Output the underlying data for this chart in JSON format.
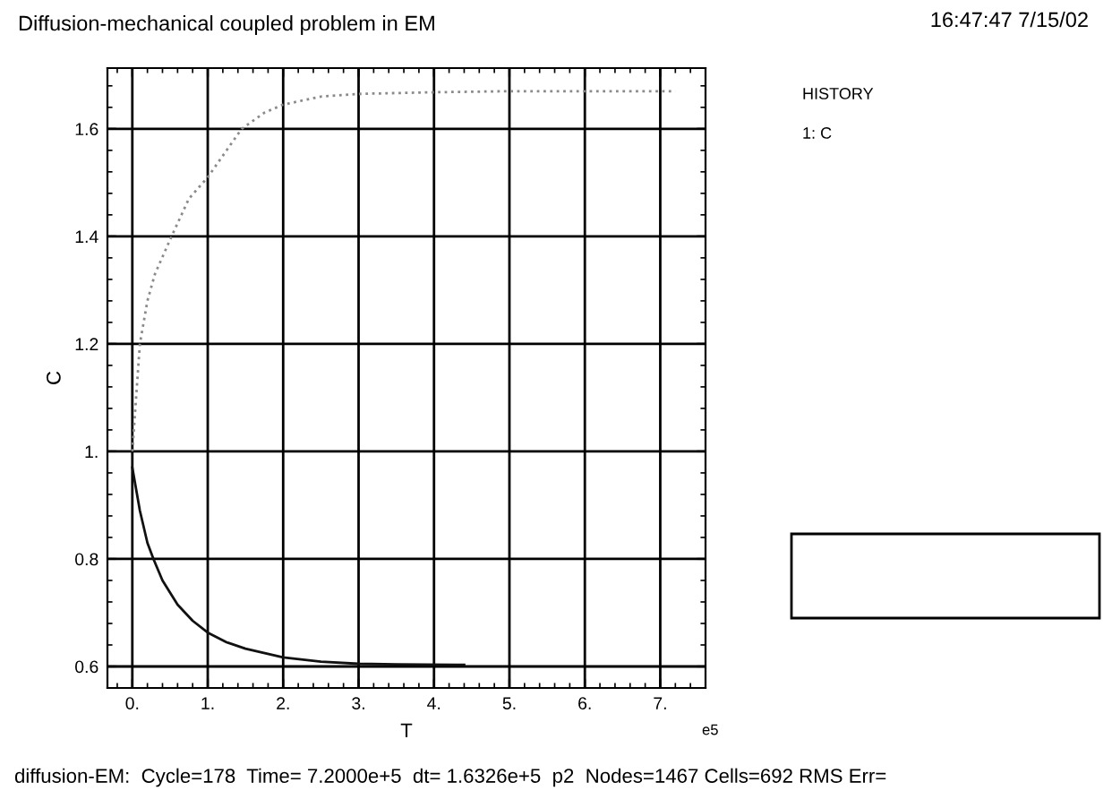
{
  "chart_data": {
    "type": "line",
    "title": "Diffusion-mechanical coupled problem in EM",
    "xlabel": "T",
    "ylabel": "C",
    "annotations": [
      "16:47:47 7/15/02",
      "HISTORY",
      "1: C",
      "e5",
      "diffusion-EM:  Cycle=178  Time= 7.2000e+5  dt= 1.6326e+5  p2  Nodes=1467 Cells=692 RMS Err="
    ],
    "series": [
      {
        "color": "#8a8a8a",
        "line_style": "dotted",
        "x": [
          0,
          0.05,
          0.1,
          0.2,
          0.3,
          0.52,
          0.75,
          1.0,
          1.25,
          1.45,
          1.75,
          2.0,
          2.5,
          3.0,
          4.0,
          5.0,
          6.0,
          7.2
        ],
        "values": [
          1.0,
          1.1,
          1.2,
          1.28,
          1.33,
          1.4,
          1.47,
          1.51,
          1.56,
          1.6,
          1.63,
          1.645,
          1.66,
          1.665,
          1.668,
          1.67,
          1.67,
          1.67
        ]
      },
      {
        "color": "#111111",
        "line_style": "solid",
        "x": [
          0,
          0.05,
          0.1,
          0.2,
          0.28,
          0.4,
          0.6,
          0.8,
          1.0,
          1.25,
          1.5,
          2.0,
          2.5,
          3.0,
          3.5,
          4.4
        ],
        "values": [
          0.97,
          0.93,
          0.89,
          0.83,
          0.8,
          0.76,
          0.715,
          0.685,
          0.663,
          0.645,
          0.633,
          0.617,
          0.609,
          0.605,
          0.604,
          0.603
        ]
      }
    ],
    "xlim": [
      -0.33,
      7.6
    ],
    "ylim": [
      0.56,
      1.713
    ],
    "xticks": [
      {
        "value": 0,
        "label": "0."
      },
      {
        "value": 1,
        "label": "1."
      },
      {
        "value": 2,
        "label": "2."
      },
      {
        "value": 3,
        "label": "3."
      },
      {
        "value": 4,
        "label": "4."
      },
      {
        "value": 5,
        "label": "5."
      },
      {
        "value": 6,
        "label": "6."
      },
      {
        "value": 7,
        "label": "7."
      }
    ],
    "yticks": [
      0.6,
      0.8,
      {
        "value": 1,
        "label": "1."
      },
      1.2,
      1.4,
      1.6
    ],
    "grid": true
  }
}
